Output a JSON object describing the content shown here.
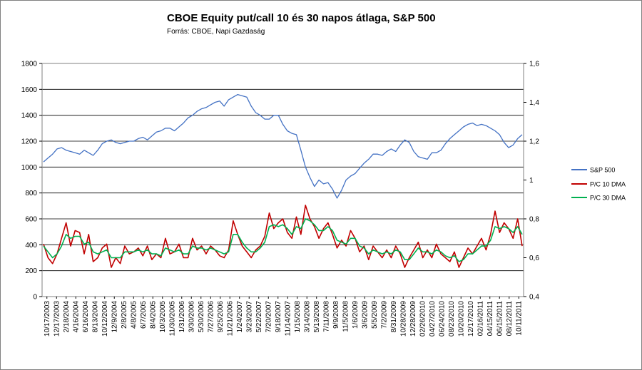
{
  "chart_data": {
    "type": "line",
    "title": "CBOE Equity put/call 10 és 30 napos átlaga, S&P 500",
    "subtitle": "Forrás: CBOE, Napi Gazdaság",
    "y_left": {
      "min": 0,
      "max": 1800,
      "ticks": [
        "0",
        "200",
        "400",
        "600",
        "800",
        "1000",
        "1200",
        "1400",
        "1600",
        "1800"
      ]
    },
    "y_right": {
      "min": 0.4,
      "max": 1.6,
      "ticks": [
        "0,4",
        "0,6",
        "0,8",
        "1",
        "1,2",
        "1,4",
        "1,6"
      ]
    },
    "grid": true,
    "legend_position": "right",
    "x_tick_labels": [
      "10/17/2003",
      "12/17/2003",
      "2/18/2004",
      "4/16/2004",
      "6/16/2004",
      "8/13/2004",
      "10/12/2004",
      "12/9/2004",
      "2/8/2005",
      "4/8/2005",
      "6/7/2005",
      "8/4/2005",
      "10/3/2005",
      "11/30/2005",
      "1/31/2006",
      "3/30/2006",
      "5/30/2006",
      "7/27/2006",
      "9/25/2006",
      "11/21/2006",
      "1/24/2007",
      "3/23/2007",
      "5/22/2007",
      "7/20/2007",
      "9/18/2007",
      "11/14/2007",
      "1/15/2008",
      "3/14/2008",
      "5/13/2008",
      "7/11/2008",
      "9/9/2008",
      "11/5/2008",
      "1/6/2009",
      "3/6/2009",
      "5/5/2009",
      "7/2/2009",
      "8/31/2009",
      "10/28/2009",
      "12/28/2009",
      "02/26/2010",
      "04/27/2010",
      "06/24/2010",
      "08/23/2010",
      "10/20/2010",
      "12/17/2010",
      "02/16/2011",
      "04/15/2011",
      "06/15/2011",
      "08/12/2011",
      "10/11/2011"
    ],
    "series": [
      {
        "name": "S&P 500",
        "axis": "left",
        "color": "#4472c4",
        "values": [
          1040,
          1070,
          1100,
          1140,
          1150,
          1130,
          1120,
          1110,
          1100,
          1130,
          1110,
          1090,
          1130,
          1180,
          1200,
          1210,
          1190,
          1180,
          1190,
          1200,
          1200,
          1220,
          1230,
          1210,
          1240,
          1270,
          1280,
          1300,
          1300,
          1280,
          1310,
          1340,
          1380,
          1400,
          1430,
          1450,
          1460,
          1480,
          1500,
          1510,
          1470,
          1520,
          1540,
          1560,
          1550,
          1540,
          1470,
          1420,
          1400,
          1370,
          1370,
          1400,
          1400,
          1330,
          1280,
          1260,
          1250,
          1130,
          1000,
          920,
          850,
          900,
          870,
          880,
          830,
          760,
          820,
          900,
          930,
          950,
          990,
          1030,
          1060,
          1100,
          1100,
          1090,
          1120,
          1140,
          1120,
          1170,
          1210,
          1190,
          1120,
          1080,
          1070,
          1060,
          1110,
          1110,
          1130,
          1180,
          1220,
          1250,
          1280,
          1310,
          1330,
          1340,
          1320,
          1330,
          1320,
          1300,
          1280,
          1250,
          1190,
          1150,
          1170,
          1220,
          1250
        ]
      },
      {
        "name": "P/C 10 DMA",
        "axis": "right",
        "color": "#c00000",
        "values": [
          0.67,
          0.6,
          0.57,
          0.62,
          0.7,
          0.78,
          0.66,
          0.74,
          0.73,
          0.62,
          0.72,
          0.58,
          0.6,
          0.65,
          0.67,
          0.55,
          0.6,
          0.57,
          0.66,
          0.62,
          0.63,
          0.65,
          0.61,
          0.66,
          0.59,
          0.62,
          0.6,
          0.7,
          0.62,
          0.63,
          0.67,
          0.6,
          0.6,
          0.7,
          0.64,
          0.66,
          0.62,
          0.66,
          0.64,
          0.61,
          0.6,
          0.64,
          0.79,
          0.72,
          0.66,
          0.63,
          0.6,
          0.64,
          0.66,
          0.71,
          0.83,
          0.75,
          0.78,
          0.8,
          0.73,
          0.7,
          0.81,
          0.72,
          0.87,
          0.8,
          0.76,
          0.7,
          0.75,
          0.78,
          0.72,
          0.65,
          0.69,
          0.66,
          0.74,
          0.7,
          0.63,
          0.66,
          0.59,
          0.66,
          0.63,
          0.6,
          0.64,
          0.6,
          0.66,
          0.62,
          0.55,
          0.6,
          0.64,
          0.68,
          0.6,
          0.64,
          0.6,
          0.67,
          0.62,
          0.6,
          0.58,
          0.63,
          0.55,
          0.6,
          0.65,
          0.62,
          0.66,
          0.7,
          0.64,
          0.72,
          0.84,
          0.73,
          0.78,
          0.75,
          0.7,
          0.8,
          0.66
        ]
      },
      {
        "name": "P/C 30 DMA",
        "axis": "right",
        "color": "#00b050",
        "values": [
          0.66,
          0.63,
          0.6,
          0.62,
          0.66,
          0.72,
          0.7,
          0.71,
          0.71,
          0.67,
          0.68,
          0.63,
          0.62,
          0.63,
          0.64,
          0.6,
          0.6,
          0.6,
          0.63,
          0.63,
          0.63,
          0.64,
          0.63,
          0.64,
          0.62,
          0.62,
          0.61,
          0.65,
          0.64,
          0.63,
          0.64,
          0.62,
          0.62,
          0.66,
          0.65,
          0.65,
          0.64,
          0.65,
          0.64,
          0.63,
          0.62,
          0.63,
          0.72,
          0.72,
          0.68,
          0.65,
          0.63,
          0.63,
          0.65,
          0.68,
          0.76,
          0.77,
          0.76,
          0.77,
          0.75,
          0.72,
          0.76,
          0.75,
          0.8,
          0.79,
          0.77,
          0.74,
          0.74,
          0.76,
          0.74,
          0.69,
          0.68,
          0.67,
          0.7,
          0.7,
          0.66,
          0.65,
          0.62,
          0.64,
          0.63,
          0.62,
          0.63,
          0.62,
          0.64,
          0.63,
          0.59,
          0.59,
          0.62,
          0.65,
          0.63,
          0.63,
          0.62,
          0.64,
          0.63,
          0.61,
          0.6,
          0.61,
          0.58,
          0.59,
          0.62,
          0.62,
          0.64,
          0.66,
          0.66,
          0.69,
          0.76,
          0.75,
          0.76,
          0.75,
          0.73,
          0.76,
          0.72
        ]
      }
    ]
  }
}
